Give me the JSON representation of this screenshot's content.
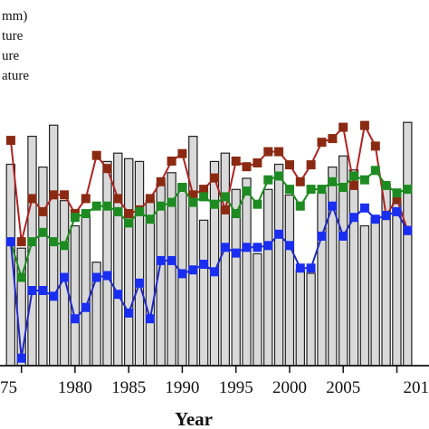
{
  "chart_data": {
    "type": "bar",
    "xlabel": "Year",
    "x_ticks": [
      "75",
      "1980",
      "1985",
      "1990",
      "1995",
      "2000",
      "2005",
      "201"
    ],
    "legend": [
      "mm)",
      "ture",
      "ure",
      "ature"
    ],
    "years": [
      1974,
      1975,
      1976,
      1977,
      1978,
      1979,
      1980,
      1981,
      1982,
      1983,
      1984,
      1985,
      1986,
      1987,
      1988,
      1989,
      1990,
      1991,
      1992,
      1993,
      1994,
      1995,
      1996,
      1997,
      1998,
      1999,
      2000,
      2001,
      2002,
      2003,
      2004,
      2005,
      2006,
      2007,
      2008,
      2009,
      2010,
      2011
    ],
    "bars": [
      0.72,
      0.42,
      0.82,
      0.71,
      0.86,
      0.59,
      0.5,
      0.54,
      0.37,
      0.73,
      0.76,
      0.74,
      0.73,
      0.59,
      0.65,
      0.69,
      0.65,
      0.82,
      0.52,
      0.73,
      0.76,
      0.63,
      0.67,
      0.4,
      0.63,
      0.72,
      0.61,
      0.34,
      0.33,
      0.62,
      0.71,
      0.75,
      0.7,
      0.5,
      0.53,
      0.65,
      0.58,
      0.87
    ],
    "series": [
      {
        "color": "#b22222",
        "marker": "#8b2a12",
        "values": [
          0.97,
          0.43,
          0.66,
          0.59,
          0.68,
          0.68,
          0.58,
          0.66,
          0.89,
          0.82,
          0.66,
          0.58,
          0.6,
          0.66,
          0.75,
          0.86,
          0.9,
          0.68,
          0.71,
          0.77,
          0.6,
          0.86,
          0.83,
          0.85,
          0.91,
          0.91,
          0.84,
          0.75,
          0.84,
          0.96,
          0.98,
          1.04,
          0.73,
          1.05,
          0.94,
          0.57,
          0.66,
          0.49
        ]
      },
      {
        "color": "#1a8c1a",
        "marker": "#1e8b22",
        "values": [
          0.43,
          0.24,
          0.43,
          0.48,
          0.43,
          0.41,
          0.56,
          0.58,
          0.62,
          0.62,
          0.59,
          0.53,
          0.59,
          0.55,
          0.62,
          0.64,
          0.72,
          0.64,
          0.67,
          0.63,
          0.67,
          0.58,
          0.7,
          0.63,
          0.76,
          0.78,
          0.71,
          0.62,
          0.71,
          0.71,
          0.75,
          0.72,
          0.78,
          0.76,
          0.81,
          0.73,
          0.69,
          0.71
        ]
      },
      {
        "color": "#1f28c8",
        "marker": "#1a2ef0",
        "values": [
          0.43,
          -0.19,
          0.17,
          0.17,
          0.14,
          0.24,
          0.02,
          0.08,
          0.24,
          0.25,
          0.15,
          0.05,
          0.21,
          0.02,
          0.33,
          0.33,
          0.26,
          0.28,
          0.31,
          0.27,
          0.4,
          0.37,
          0.4,
          0.4,
          0.41,
          0.47,
          0.41,
          0.29,
          0.29,
          0.46,
          0.62,
          0.46,
          0.56,
          0.61,
          0.55,
          0.57,
          0.59,
          0.49
        ]
      }
    ],
    "xlim": [
      1973.0,
      2013.0
    ],
    "ylim_lines": [
      -0.23,
      1.26
    ],
    "ylim_bars": [
      0,
      1.0
    ],
    "grid": false,
    "legend_position": "top-left"
  }
}
